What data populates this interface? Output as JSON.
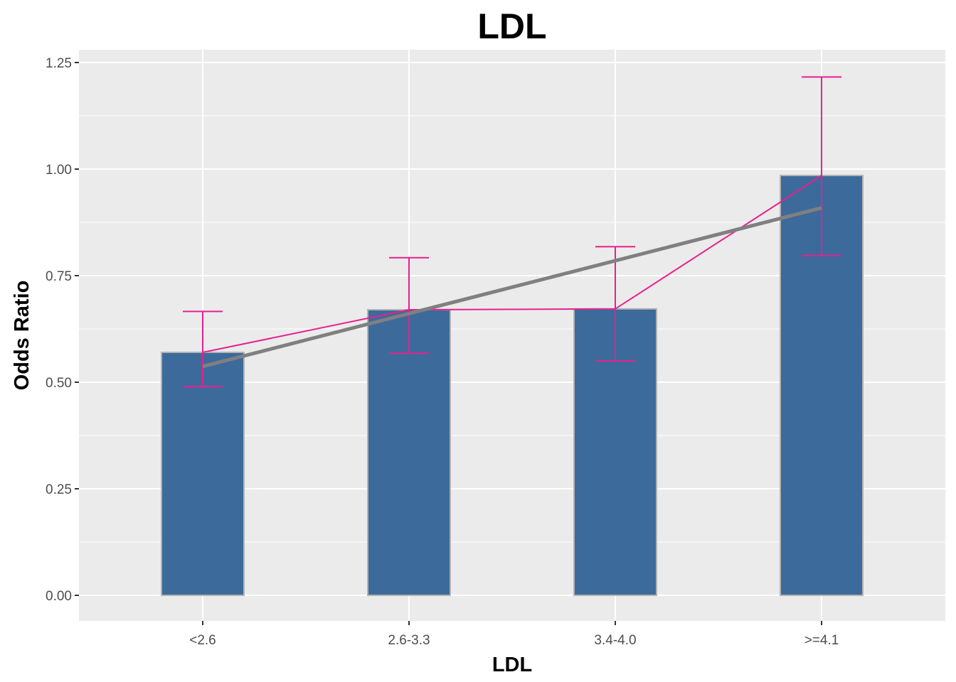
{
  "chart_data": {
    "type": "bar",
    "title": "LDL",
    "xlabel": "LDL",
    "ylabel": "Odds Ratio",
    "categories": [
      "<2.6",
      "2.6-3.3",
      "3.4-4.0",
      ">=4.1"
    ],
    "series": [
      {
        "values": [
          0.57,
          0.67,
          0.672,
          0.985
        ],
        "ci_lower": [
          0.49,
          0.568,
          0.55,
          0.797
        ],
        "ci_upper": [
          0.666,
          0.792,
          0.818,
          1.216
        ]
      }
    ],
    "trend_line": {
      "start": 0.537,
      "end": 0.909
    },
    "ylim": [
      -0.06,
      1.28
    ],
    "yticks": [
      "0.00",
      "0.25",
      "0.50",
      "0.75",
      "1.00",
      "1.25"
    ],
    "ytick_values": [
      0,
      0.25,
      0.5,
      0.75,
      1.0,
      1.25
    ],
    "grid": true,
    "colors": {
      "bar_fill": "#3c6a9b",
      "bar_outline": "#b3b3b3",
      "errorbar": "#e7208f",
      "trend": "#808080",
      "panel": "#ebebeb",
      "grid": "#ffffff"
    }
  }
}
